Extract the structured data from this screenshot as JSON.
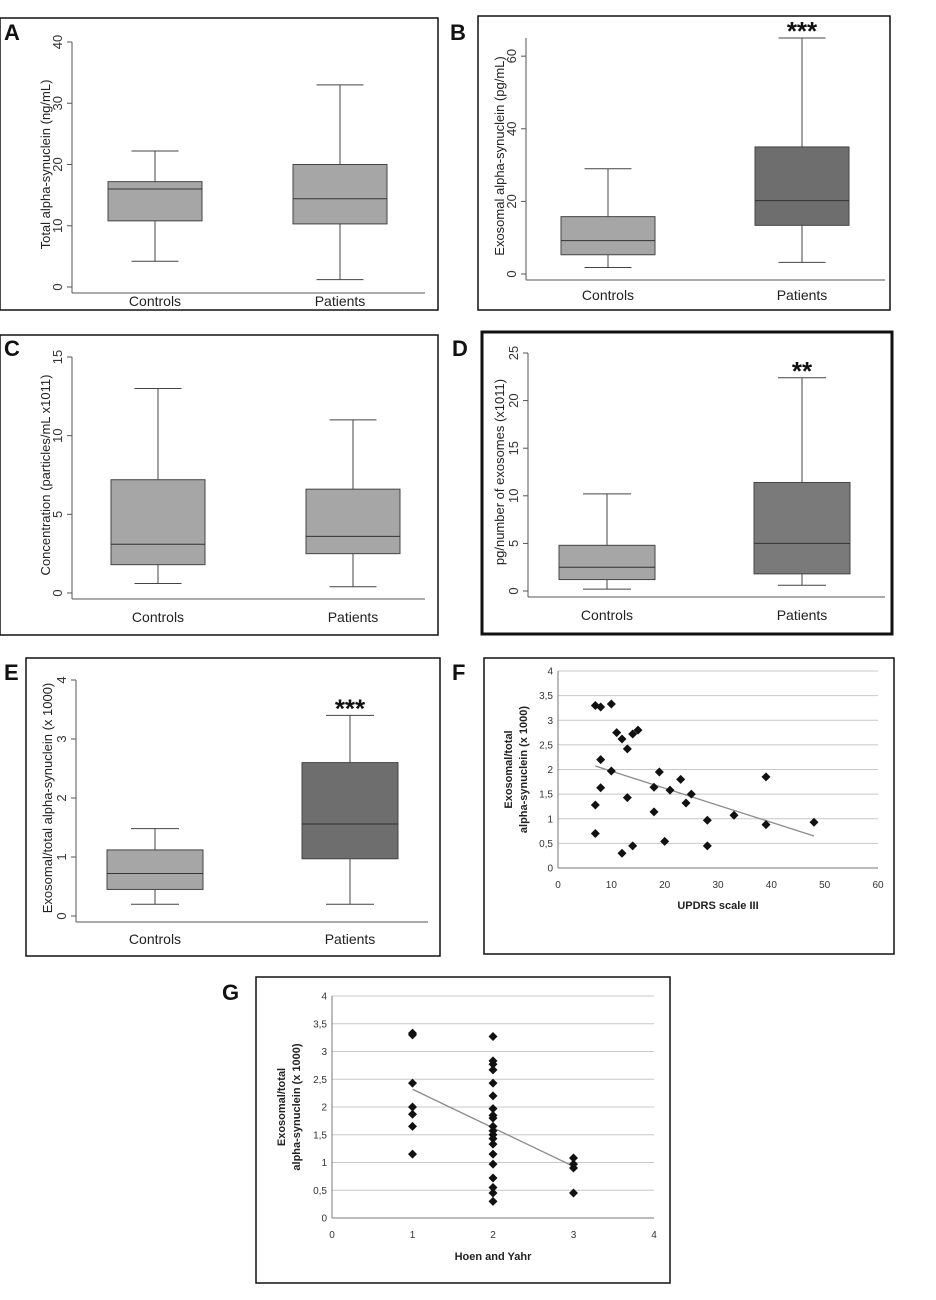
{
  "chart_data": [
    {
      "panel": "A",
      "type": "box",
      "ylabel": "Total alpha-synuclein (ng/mL)",
      "ylim": [
        0,
        40
      ],
      "yticks": [
        0,
        10,
        20,
        30,
        40
      ],
      "categories": [
        "Controls",
        "Patients"
      ],
      "boxes": [
        {
          "min": 4.2,
          "q1": 10.8,
          "median": 16,
          "q3": 17.2,
          "max": 22.2
        },
        {
          "min": 1.2,
          "q1": 10.3,
          "median": 14.4,
          "q3": 20,
          "max": 33
        }
      ],
      "significance": "",
      "color": "#a6a6a6"
    },
    {
      "panel": "B",
      "type": "box",
      "ylabel": "Exosomal alpha-synuclein (pg/mL)",
      "ylim": [
        0,
        65
      ],
      "yticks": [
        0,
        20,
        40,
        60
      ],
      "categories": [
        "Controls",
        "Patients"
      ],
      "boxes": [
        {
          "min": 1.8,
          "q1": 5.3,
          "median": 9.2,
          "q3": 15.8,
          "max": 29
        },
        {
          "min": 3.2,
          "q1": 13.4,
          "median": 20.2,
          "q3": 35,
          "max": 65
        }
      ],
      "significance": "***",
      "color": "#6e6e6e"
    },
    {
      "panel": "C",
      "type": "box",
      "ylabel": "Concentration (particles/mL x1011)",
      "ylim": [
        0,
        15
      ],
      "yticks": [
        0,
        5,
        10,
        15
      ],
      "categories": [
        "Controls",
        "Patients"
      ],
      "boxes": [
        {
          "min": 0.6,
          "q1": 1.8,
          "median": 3.1,
          "q3": 7.2,
          "max": 13
        },
        {
          "min": 0.4,
          "q1": 2.5,
          "median": 3.6,
          "q3": 6.6,
          "max": 11
        }
      ],
      "significance": "",
      "color": "#a6a6a6"
    },
    {
      "panel": "D",
      "type": "box",
      "ylabel": "pg/number of exosomes (x1011)",
      "ylim": [
        0,
        25
      ],
      "yticks": [
        0,
        5,
        10,
        15,
        20,
        25
      ],
      "categories": [
        "Controls",
        "Patients"
      ],
      "boxes": [
        {
          "min": 0.2,
          "q1": 1.2,
          "median": 2.5,
          "q3": 4.8,
          "max": 10.2
        },
        {
          "min": 0.6,
          "q1": 1.8,
          "median": 5,
          "q3": 11.4,
          "max": 22.4
        }
      ],
      "significance": "**",
      "color": "#7a7a7a"
    },
    {
      "panel": "E",
      "type": "box",
      "ylabel": "Exosomal/total alpha-synuclein (x 1000)",
      "ylim": [
        0,
        4
      ],
      "yticks": [
        0,
        1,
        2,
        3,
        4
      ],
      "categories": [
        "Controls",
        "Patients"
      ],
      "boxes": [
        {
          "min": 0.2,
          "q1": 0.45,
          "median": 0.72,
          "q3": 1.12,
          "max": 1.48
        },
        {
          "min": 0.2,
          "q1": 0.97,
          "median": 1.56,
          "q3": 2.6,
          "max": 3.4
        }
      ],
      "significance": "***",
      "color": "#6e6e6e"
    },
    {
      "panel": "F",
      "type": "scatter",
      "xlabel": "UPDRS scale III",
      "ylabel_lines": [
        "Exosomal/total",
        "alpha-synuclein (x 1000)"
      ],
      "xlim": [
        0,
        60
      ],
      "ylim": [
        0,
        4
      ],
      "xticks": [
        "0",
        "10",
        "20",
        "30",
        "40",
        "50",
        "60"
      ],
      "yticks": [
        "0",
        "0,5",
        "1",
        "1,5",
        "2",
        "2,5",
        "3",
        "3,5",
        "4"
      ],
      "points": [
        [
          7,
          3.3
        ],
        [
          8,
          3.27
        ],
        [
          10,
          3.33
        ],
        [
          7,
          1.28
        ],
        [
          7,
          0.7
        ],
        [
          8,
          2.2
        ],
        [
          8,
          1.63
        ],
        [
          10,
          1.97
        ],
        [
          11,
          2.75
        ],
        [
          12,
          2.62
        ],
        [
          13,
          2.42
        ],
        [
          14,
          2.72
        ],
        [
          15,
          2.8
        ],
        [
          12,
          0.3
        ],
        [
          13,
          1.43
        ],
        [
          14,
          0.45
        ],
        [
          18,
          1.64
        ],
        [
          18,
          1.14
        ],
        [
          19,
          1.95
        ],
        [
          20,
          0.54
        ],
        [
          21,
          1.58
        ],
        [
          23,
          1.8
        ],
        [
          24,
          1.32
        ],
        [
          25,
          1.5
        ],
        [
          28,
          0.97
        ],
        [
          28,
          0.45
        ],
        [
          33,
          1.07
        ],
        [
          39,
          1.85
        ],
        [
          39,
          0.88
        ],
        [
          48,
          0.93
        ]
      ],
      "trendline": [
        [
          7,
          2.07
        ],
        [
          48,
          0.65
        ]
      ]
    },
    {
      "panel": "G",
      "type": "scatter",
      "xlabel": "Hoen and Yahr",
      "ylabel_lines": [
        "Exosomal/total",
        "alpha-synuclein (x 1000)"
      ],
      "xlim": [
        0,
        4
      ],
      "ylim": [
        0,
        4
      ],
      "xticks": [
        "0",
        "1",
        "2",
        "3",
        "4"
      ],
      "yticks": [
        "0",
        "0,5",
        "1",
        "1,5",
        "2",
        "2,5",
        "3",
        "3,5",
        "4"
      ],
      "points": [
        [
          1,
          3.33
        ],
        [
          1,
          3.3
        ],
        [
          1,
          2.43
        ],
        [
          1,
          2.0
        ],
        [
          1,
          1.87
        ],
        [
          1,
          1.65
        ],
        [
          1,
          1.15
        ],
        [
          2,
          3.27
        ],
        [
          2,
          2.83
        ],
        [
          2,
          2.77
        ],
        [
          2,
          2.67
        ],
        [
          2,
          2.43
        ],
        [
          2,
          2.2
        ],
        [
          2,
          1.97
        ],
        [
          2,
          1.85
        ],
        [
          2,
          1.8
        ],
        [
          2,
          1.65
        ],
        [
          2,
          1.57
        ],
        [
          2,
          1.5
        ],
        [
          2,
          1.43
        ],
        [
          2,
          1.33
        ],
        [
          2,
          1.15
        ],
        [
          2,
          0.97
        ],
        [
          2,
          0.72
        ],
        [
          2,
          0.55
        ],
        [
          2,
          0.45
        ],
        [
          2,
          0.3
        ],
        [
          3,
          1.08
        ],
        [
          3,
          0.97
        ],
        [
          3,
          0.9
        ],
        [
          3,
          0.45
        ]
      ],
      "trendline": [
        [
          1,
          2.32
        ],
        [
          3,
          0.93
        ]
      ]
    }
  ]
}
